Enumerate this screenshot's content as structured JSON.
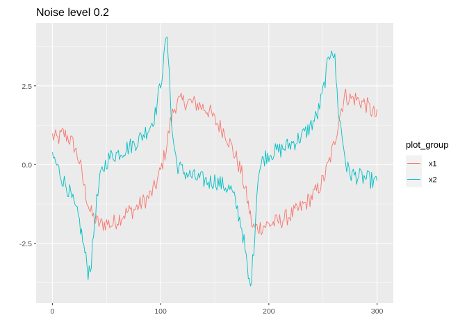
{
  "chart_data": {
    "type": "line",
    "title": "Noise level 0.2",
    "xlabel": "",
    "ylabel": "",
    "xlim": [
      -15,
      315
    ],
    "ylim": [
      -4.4,
      4.5
    ],
    "x_ticks": [
      0,
      100,
      200,
      300
    ],
    "x_tick_labels": [
      "0",
      "100",
      "200",
      "300"
    ],
    "y_ticks": [
      -2.5,
      0,
      2.5
    ],
    "y_tick_labels": [
      "-2.5",
      "0.0",
      "2.5"
    ],
    "grid": true,
    "legend": {
      "title": "plot_group",
      "position": "right",
      "entries": [
        "x1",
        "x2"
      ]
    },
    "series": [
      {
        "name": "x1",
        "color": "#F8766D",
        "points": [
          [
            0,
            0.9
          ],
          [
            5,
            0.8
          ],
          [
            10,
            1.0
          ],
          [
            15,
            0.85
          ],
          [
            20,
            0.6
          ],
          [
            25,
            0.1
          ],
          [
            30,
            -0.8
          ],
          [
            35,
            -1.5
          ],
          [
            40,
            -1.8
          ],
          [
            45,
            -1.9
          ],
          [
            50,
            -1.85
          ],
          [
            55,
            -1.9
          ],
          [
            60,
            -1.75
          ],
          [
            65,
            -1.6
          ],
          [
            70,
            -1.5
          ],
          [
            75,
            -1.45
          ],
          [
            80,
            -1.3
          ],
          [
            85,
            -1.15
          ],
          [
            90,
            -1.0
          ],
          [
            95,
            -0.7
          ],
          [
            100,
            -0.2
          ],
          [
            105,
            0.5
          ],
          [
            110,
            1.5
          ],
          [
            115,
            2.0
          ],
          [
            120,
            2.0
          ],
          [
            125,
            2.0
          ],
          [
            130,
            1.95
          ],
          [
            135,
            1.9
          ],
          [
            140,
            1.8
          ],
          [
            145,
            1.7
          ],
          [
            150,
            1.4
          ],
          [
            155,
            1.2
          ],
          [
            160,
            1.0
          ],
          [
            165,
            0.6
          ],
          [
            170,
            0.2
          ],
          [
            175,
            -0.3
          ],
          [
            180,
            -1.1
          ],
          [
            185,
            -2.0
          ],
          [
            190,
            -2.0
          ],
          [
            195,
            -1.95
          ],
          [
            200,
            -1.9
          ],
          [
            205,
            -1.85
          ],
          [
            210,
            -1.8
          ],
          [
            215,
            -1.7
          ],
          [
            220,
            -1.6
          ],
          [
            225,
            -1.5
          ],
          [
            230,
            -1.35
          ],
          [
            235,
            -1.2
          ],
          [
            240,
            -1.0
          ],
          [
            245,
            -0.8
          ],
          [
            250,
            -0.5
          ],
          [
            255,
            0.0
          ],
          [
            260,
            0.6
          ],
          [
            265,
            1.5
          ],
          [
            270,
            2.2
          ],
          [
            275,
            2.1
          ],
          [
            280,
            2.1
          ],
          [
            285,
            2.0
          ],
          [
            290,
            1.9
          ],
          [
            295,
            1.7
          ],
          [
            300,
            1.5
          ]
        ]
      },
      {
        "name": "x2",
        "color": "#00BFC4",
        "points": [
          [
            0,
            0.3
          ],
          [
            5,
            -0.1
          ],
          [
            10,
            -0.5
          ],
          [
            15,
            -0.8
          ],
          [
            20,
            -1.3
          ],
          [
            25,
            -1.8
          ],
          [
            30,
            -2.8
          ],
          [
            33,
            -3.4
          ],
          [
            36,
            -3.1
          ],
          [
            40,
            -1.4
          ],
          [
            45,
            -0.3
          ],
          [
            50,
            0.1
          ],
          [
            55,
            0.3
          ],
          [
            60,
            0.35
          ],
          [
            65,
            0.45
          ],
          [
            70,
            0.55
          ],
          [
            75,
            0.65
          ],
          [
            80,
            0.8
          ],
          [
            85,
            1.0
          ],
          [
            90,
            1.2
          ],
          [
            95,
            1.6
          ],
          [
            100,
            2.6
          ],
          [
            103,
            3.3
          ],
          [
            105,
            4.1
          ],
          [
            108,
            3.2
          ],
          [
            110,
            1.2
          ],
          [
            115,
            0.0
          ],
          [
            120,
            -0.2
          ],
          [
            125,
            -0.3
          ],
          [
            130,
            -0.4
          ],
          [
            135,
            -0.45
          ],
          [
            140,
            -0.5
          ],
          [
            145,
            -0.55
          ],
          [
            150,
            -0.5
          ],
          [
            155,
            -0.6
          ],
          [
            160,
            -0.7
          ],
          [
            165,
            -0.8
          ],
          [
            170,
            -1.3
          ],
          [
            175,
            -2.0
          ],
          [
            178,
            -2.7
          ],
          [
            181,
            -3.6
          ],
          [
            183,
            -3.9
          ],
          [
            186,
            -2.7
          ],
          [
            190,
            -0.3
          ],
          [
            195,
            0.2
          ],
          [
            200,
            0.35
          ],
          [
            205,
            0.4
          ],
          [
            210,
            0.45
          ],
          [
            215,
            0.55
          ],
          [
            220,
            0.65
          ],
          [
            225,
            0.75
          ],
          [
            230,
            0.9
          ],
          [
            235,
            1.05
          ],
          [
            240,
            1.3
          ],
          [
            245,
            1.6
          ],
          [
            250,
            2.3
          ],
          [
            254,
            3.1
          ],
          [
            258,
            3.8
          ],
          [
            261,
            3.3
          ],
          [
            264,
            1.8
          ],
          [
            268,
            0.8
          ],
          [
            272,
            -0.1
          ],
          [
            276,
            -0.3
          ],
          [
            280,
            -0.35
          ],
          [
            285,
            -0.4
          ],
          [
            290,
            -0.45
          ],
          [
            295,
            -0.5
          ],
          [
            300,
            -0.6
          ]
        ]
      }
    ]
  }
}
